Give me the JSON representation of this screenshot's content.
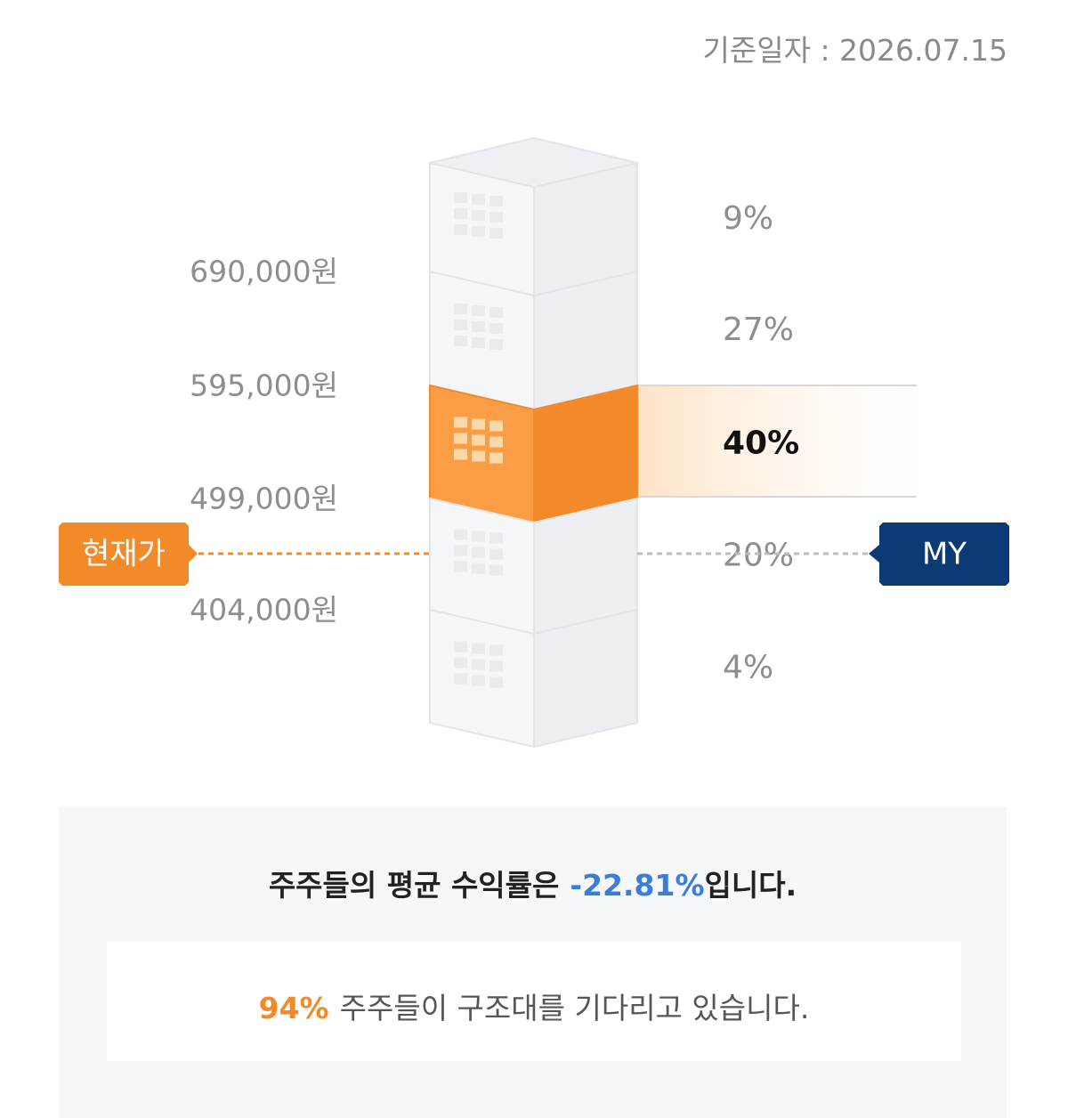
{
  "date_label": "기준일자 : 2026.07.15",
  "price_levels": [
    "690,000원",
    "595,000원",
    "499,000원",
    "404,000원"
  ],
  "floor_percents": [
    "9%",
    "27%",
    "40%",
    "20%",
    "4%"
  ],
  "current_price_tag": "현재가",
  "my_tag": "MY",
  "summary": {
    "text": "주주들의 평균 수익률은",
    "return": "-22.81%",
    "suffix": "입니다."
  },
  "waiting": {
    "percent": "94%",
    "text": "주주들이 구조대를 기다리고 있습니다."
  }
}
